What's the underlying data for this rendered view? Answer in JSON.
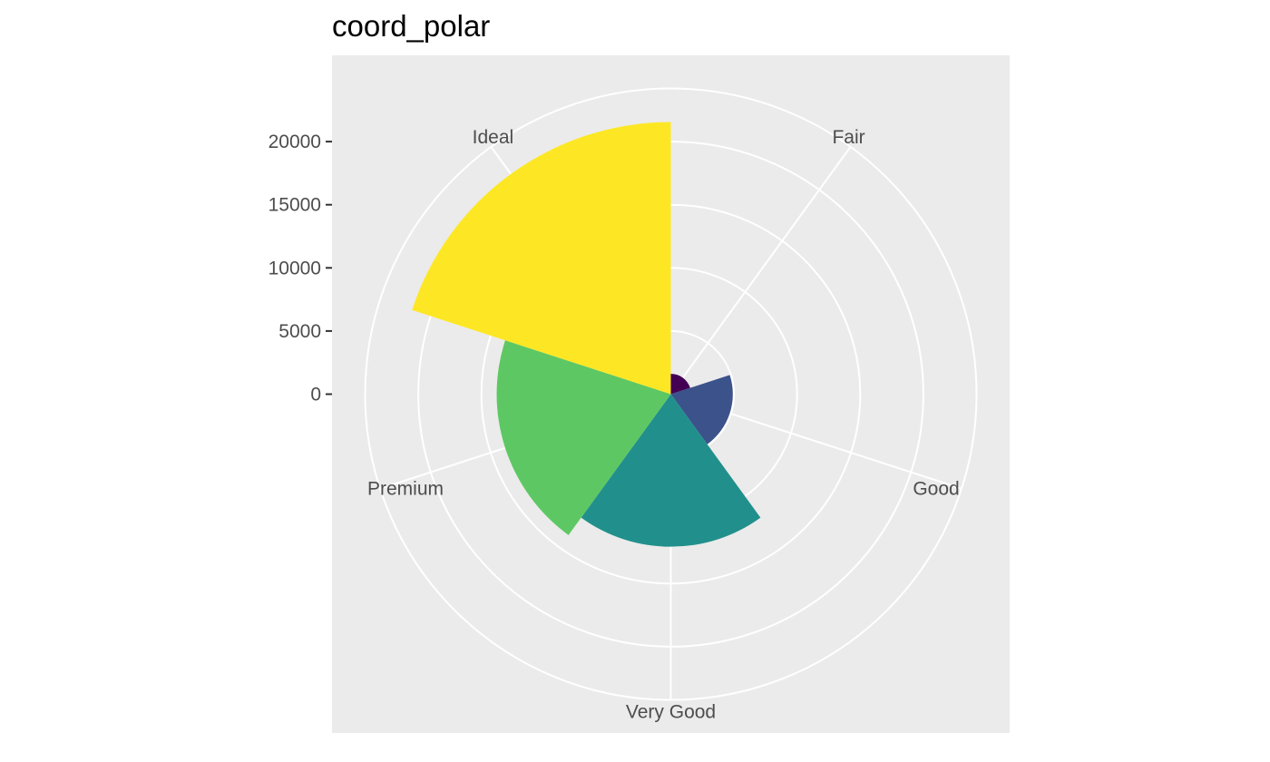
{
  "chart_data": {
    "type": "bar",
    "coord": "polar",
    "title": "coord_polar",
    "xlabel": "",
    "ylabel": "",
    "categories": [
      "Fair",
      "Good",
      "Very Good",
      "Premium",
      "Ideal"
    ],
    "values": [
      1610,
      4906,
      12082,
      13791,
      21551
    ],
    "colors": [
      "#440154",
      "#3B528B",
      "#21908C",
      "#5DC863",
      "#FDE725"
    ],
    "y_ticks": [
      0,
      5000,
      10000,
      15000,
      20000
    ],
    "y_tick_labels": [
      "0",
      "5000",
      "10000",
      "15000",
      "20000"
    ],
    "ylim": [
      0,
      22000
    ],
    "panel_background": "#EBEBEB",
    "grid": true,
    "grid_color": "#FFFFFF",
    "legend": "none"
  }
}
